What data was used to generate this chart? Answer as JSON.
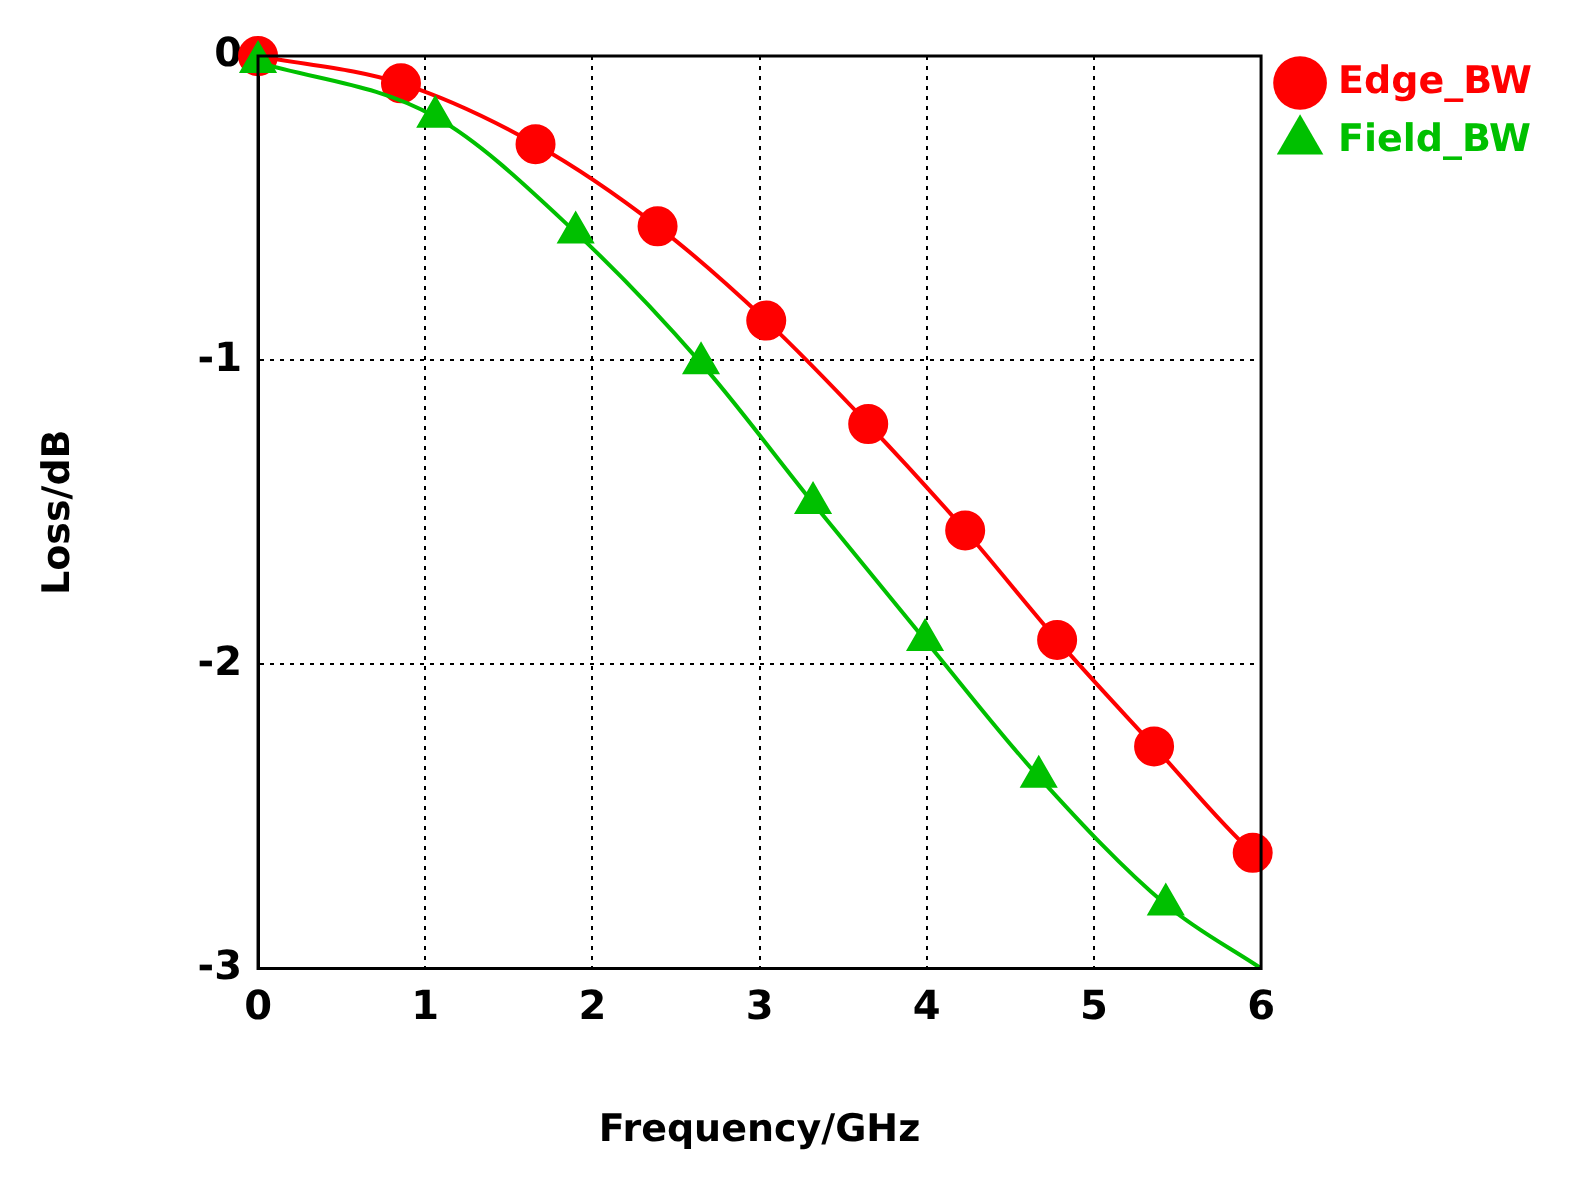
{
  "chart_data": {
    "type": "line",
    "xlabel": "Frequency/GHz",
    "ylabel": "Loss/dB",
    "xlim": [
      0,
      6
    ],
    "ylim": [
      -3,
      0
    ],
    "xticks": [
      0,
      1,
      2,
      3,
      4,
      5,
      6
    ],
    "yticks": [
      -3,
      -2,
      -1,
      0
    ],
    "grid": true,
    "legend": "top right",
    "series": [
      {
        "type": "line",
        "marker": "none",
        "color": "#ff0000",
        "x": [
          0,
          0.855,
          1.66,
          2.39,
          3.04,
          3.65,
          4.23,
          4.78,
          5.36,
          5.95,
          6
        ],
        "values": [
          0,
          -0.09,
          -0.29,
          -0.56,
          -0.87,
          -1.21,
          -1.56,
          -1.92,
          -2.27,
          -2.62,
          -2.64
        ]
      },
      {
        "type": "line",
        "marker": "none",
        "color": "#00c000",
        "x": [
          0,
          1.06,
          1.9,
          2.65,
          3.32,
          3.99,
          4.67,
          5.43,
          6
        ],
        "values": [
          -0.02,
          -0.2,
          -0.58,
          -1.01,
          -1.47,
          -1.92,
          -2.37,
          -2.79,
          -3.0
        ]
      },
      {
        "type": "scatter",
        "name": "Edge_BW",
        "marker": "circle",
        "color": "#ff0000",
        "x": [
          0,
          0.855,
          1.66,
          2.39,
          3.04,
          3.65,
          4.23,
          4.78,
          5.36,
          5.95
        ],
        "values": [
          0,
          -0.09,
          -0.29,
          -0.56,
          -0.87,
          -1.21,
          -1.56,
          -1.92,
          -2.27,
          -2.62
        ]
      },
      {
        "type": "scatter",
        "name": "Field_BW",
        "marker": "triangle",
        "color": "#00c000",
        "x": [
          0,
          1.06,
          1.9,
          2.65,
          3.32,
          3.99,
          4.67,
          5.43
        ],
        "values": [
          -0.02,
          -0.2,
          -0.58,
          -1.01,
          -1.47,
          -1.92,
          -2.37,
          -2.79
        ]
      }
    ]
  }
}
